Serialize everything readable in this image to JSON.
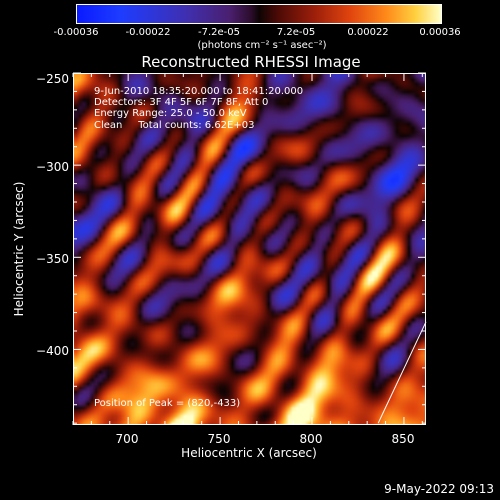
{
  "colorbar": {
    "ticks": [
      "-0.00036",
      "-0.00022",
      "-7.2e-05",
      "7.2e-05",
      "0.00022",
      "0.00036"
    ],
    "unit": "(photons cm⁻² s⁻¹ asec⁻²)",
    "range": [
      -0.00036,
      0.00036
    ]
  },
  "info": {
    "line1": "9-Jun-2010 18:35:20.000 to 18:41:20.000",
    "line2": "Detectors: 3F 4F 5F 6F 7F 8F, Att 0",
    "line3": "Energy Range: 25.0 - 50.0 keV",
    "line4": "Clean     Total counts: 6.62E+03",
    "peak": "Position of Peak = (820,-433)"
  },
  "timestamp": "9-May-2022 09:13",
  "chart_data": {
    "type": "heatmap",
    "title": "Reconstructed RHESSI Image",
    "xlabel": "Heliocentric X (arcsec)",
    "ylabel": "Heliocentric Y (arcsec)",
    "xlim": [
      670,
      862
    ],
    "ylim": [
      -441,
      -250
    ],
    "xticks": [
      700,
      750,
      800,
      850
    ],
    "yticks": [
      -250,
      -300,
      -350,
      -400
    ],
    "xtick_labels": [
      "700",
      "750",
      "800",
      "850"
    ],
    "ytick_labels": [
      "−250",
      "−300",
      "−350",
      "−400"
    ],
    "zlim": [
      -0.00036,
      0.00036
    ],
    "peak_position": [
      820,
      -433
    ],
    "annotation_line": {
      "x": [
        836,
        862
      ],
      "y": [
        -440,
        -385
      ]
    }
  }
}
